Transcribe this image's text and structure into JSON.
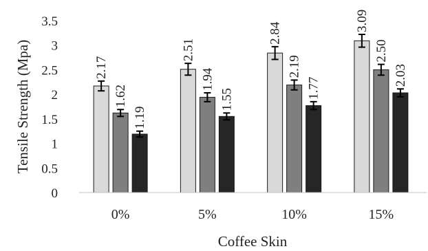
{
  "chart_data": {
    "type": "bar",
    "xlabel": "Coffee Skin",
    "ylabel": "Tensile Strength (Mpa)",
    "categories": [
      "0%",
      "5%",
      "10%",
      "15%"
    ],
    "ylim": [
      0,
      3.5
    ],
    "yticks": [
      "0",
      "0.5",
      "1",
      "1.5",
      "2",
      "2.5",
      "3",
      "3.5"
    ],
    "grid": false,
    "legend": "none",
    "series": [
      {
        "values": [
          2.17,
          2.51,
          2.84,
          3.09
        ],
        "labels": [
          "2.17",
          "2.51",
          "2.84",
          "3.09"
        ],
        "errors": [
          0.1,
          0.12,
          0.13,
          0.13
        ],
        "color": "#d9d9d9"
      },
      {
        "values": [
          1.62,
          1.94,
          2.19,
          2.5
        ],
        "labels": [
          "1.62",
          "1.94",
          "2.19",
          "2.50"
        ],
        "errors": [
          0.07,
          0.09,
          0.1,
          0.11
        ],
        "color": "#7f7f7f"
      },
      {
        "values": [
          1.19,
          1.55,
          1.77,
          2.03
        ],
        "labels": [
          "1.19",
          "1.55",
          "1.77",
          "2.03"
        ],
        "errors": [
          0.06,
          0.07,
          0.08,
          0.08
        ],
        "color": "#262626"
      }
    ]
  }
}
